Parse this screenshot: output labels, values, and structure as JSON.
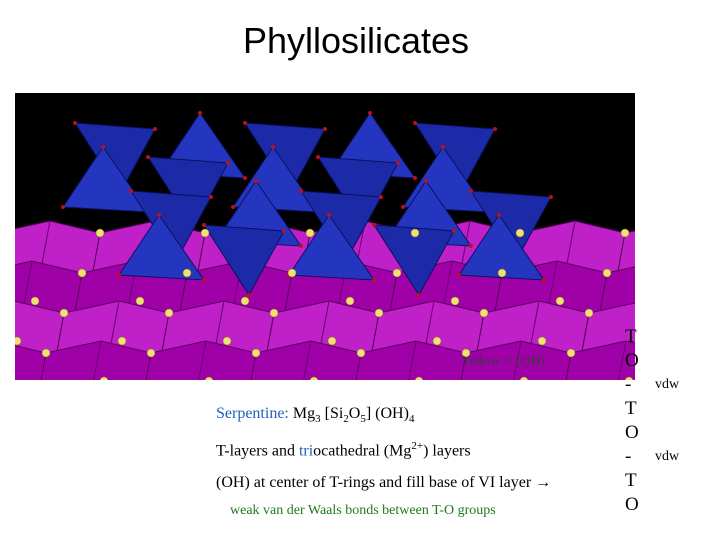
{
  "title": "Phyllosilicates",
  "image": {
    "caption": "Yellow = (OH)"
  },
  "text": {
    "serpentine": {
      "label": "Serpentine:",
      "formula": [
        "Mg",
        "3",
        " [Si",
        "2",
        "O",
        "5",
        "] (OH)",
        "4"
      ]
    },
    "layers": [
      "T-layers and ",
      "tri",
      "ocathedral (Mg",
      "2+",
      ") layers"
    ],
    "oh": "(OH) at center of T-rings and fill base of VI layer →",
    "weak": "weak van der Waals bonds between T-O groups"
  },
  "stack": [
    {
      "layer": "T"
    },
    {
      "layer": "O"
    },
    {
      "layer": "-",
      "note": "vdw"
    },
    {
      "layer": "T"
    },
    {
      "layer": "O"
    },
    {
      "layer": "-",
      "note": "vdw"
    },
    {
      "layer": "T"
    },
    {
      "layer": "O"
    }
  ]
}
